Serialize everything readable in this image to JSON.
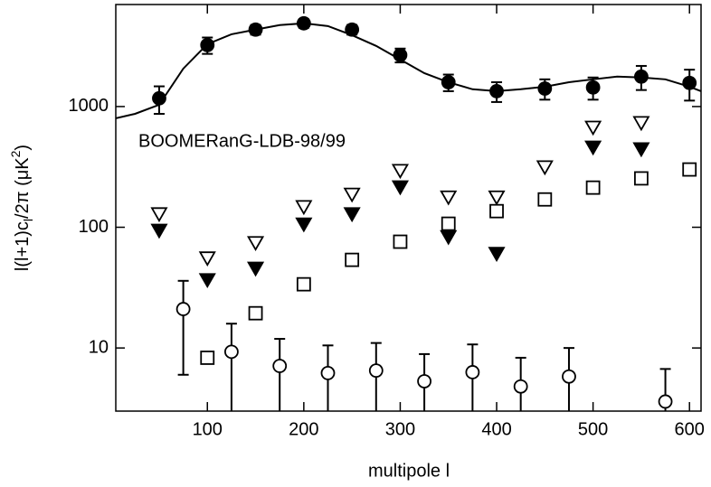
{
  "chart_data": {
    "type": "scatter",
    "annotation": "BOOMERanG-LDB-98/99",
    "xlabel": "multipole l",
    "ylabel": [
      {
        "text": "l(l+1)c"
      },
      {
        "text": "l",
        "shift": "sub"
      },
      {
        "text": "/2π (μK"
      },
      {
        "text": "2",
        "shift": "sup"
      },
      {
        "text": ")"
      }
    ],
    "xlim": [
      5,
      612
    ],
    "xticks": [
      100,
      200,
      300,
      400,
      500,
      600
    ],
    "ylim": [
      3,
      7000
    ],
    "yticks": [
      10,
      100,
      1000
    ],
    "ylog": true,
    "series": [
      {
        "style": "line",
        "color": "#000000",
        "x": [
          5,
          25,
          50,
          75,
          100,
          125,
          150,
          175,
          200,
          225,
          250,
          275,
          300,
          325,
          350,
          375,
          400,
          425,
          450,
          475,
          500,
          525,
          550,
          575,
          600,
          612
        ],
        "values": [
          800,
          870,
          1035,
          2060,
          3290,
          3970,
          4340,
          4730,
          4890,
          4640,
          3900,
          3180,
          2450,
          1890,
          1590,
          1390,
          1340,
          1390,
          1460,
          1590,
          1680,
          1770,
          1740,
          1680,
          1460,
          1340
        ]
      },
      {
        "style": "marker",
        "marker": "circle",
        "filled": true,
        "color": "#000000",
        "x": [
          50,
          100,
          150,
          200,
          250,
          300,
          350,
          400,
          450,
          500,
          550,
          600
        ],
        "values": [
          1170,
          3230,
          4340,
          4890,
          4340,
          2670,
          1590,
          1340,
          1410,
          1440,
          1770,
          1570
        ],
        "errors": [
          300,
          500,
          400,
          400,
          400,
          350,
          250,
          250,
          270,
          300,
          400,
          450
        ]
      },
      {
        "style": "marker",
        "marker": "triangle-down",
        "filled": false,
        "color": "#000000",
        "x": [
          50,
          100,
          150,
          200,
          250,
          300,
          350,
          400,
          450,
          500,
          550
        ],
        "values": [
          130,
          56,
          75,
          149,
          189,
          297,
          179,
          179,
          318,
          678,
          740
        ]
      },
      {
        "style": "marker",
        "marker": "triangle-down",
        "filled": true,
        "color": "#000000",
        "x": [
          50,
          100,
          150,
          200,
          250,
          300,
          350,
          400,
          500,
          550
        ],
        "values": [
          95,
          37,
          46,
          107,
          130,
          217,
          84,
          61,
          464,
          449
        ]
      },
      {
        "style": "marker",
        "marker": "square",
        "filled": false,
        "color": "#000000",
        "x": [
          100,
          150,
          200,
          250,
          300,
          350,
          400,
          450,
          500,
          550,
          600
        ],
        "values": [
          8.3,
          19.4,
          33.7,
          53.7,
          75.9,
          107,
          136,
          170,
          213,
          254,
          301
        ]
      },
      {
        "style": "marker",
        "marker": "circle",
        "filled": false,
        "color": "#000000",
        "x": [
          75,
          125,
          175,
          225,
          275,
          325,
          375,
          425,
          475,
          575
        ],
        "values": [
          21,
          9.3,
          7.1,
          6.2,
          6.5,
          5.3,
          6.3,
          4.8,
          5.8,
          3.6
        ],
        "errors": [
          15,
          6.6,
          4.8,
          4.3,
          4.5,
          3.6,
          4.4,
          3.5,
          4.2,
          3.1
        ]
      }
    ]
  }
}
